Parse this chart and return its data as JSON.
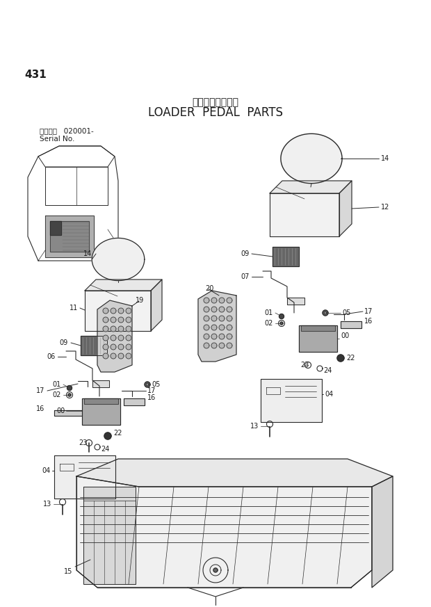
{
  "title_japanese": "ローダベダル部品",
  "title_english": "LOADER  PEDAL  PARTS",
  "page_number": "431",
  "serial_label": "適用号機   020001-",
  "serial_label2": "Serial No.",
  "bg_color": "#ffffff",
  "lc": "#2a2a2a",
  "tc": "#1a1a1a"
}
